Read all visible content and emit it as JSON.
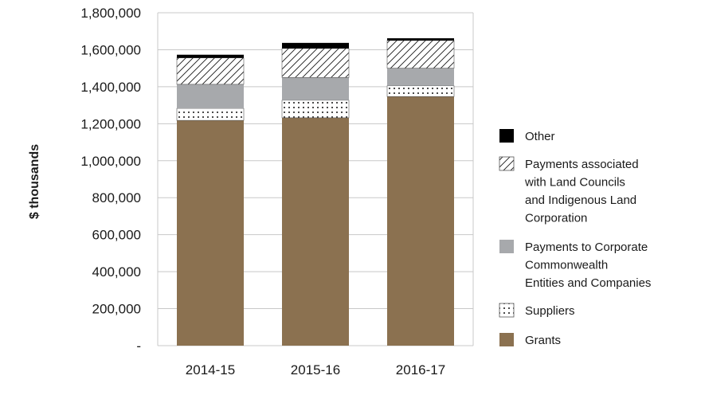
{
  "chart_data": {
    "type": "bar",
    "stacked": true,
    "title": "",
    "xlabel": "",
    "ylabel": "$ thousands",
    "ylim": [
      0,
      1800000
    ],
    "yticks": [
      {
        "value": 0,
        "label": "-"
      },
      {
        "value": 200000,
        "label": "200,000"
      },
      {
        "value": 400000,
        "label": "400,000"
      },
      {
        "value": 600000,
        "label": "600,000"
      },
      {
        "value": 800000,
        "label": "800,000"
      },
      {
        "value": 1000000,
        "label": "1,000,000"
      },
      {
        "value": 1200000,
        "label": "1,200,000"
      },
      {
        "value": 1400000,
        "label": "1,400,000"
      },
      {
        "value": 1600000,
        "label": "1,600,000"
      },
      {
        "value": 1800000,
        "label": "1,800,000"
      }
    ],
    "grid": true,
    "legend_position": "right",
    "categories": [
      "2014-15",
      "2015-16",
      "2016-17"
    ],
    "series": [
      {
        "name": "Grants",
        "key": "grants",
        "color": "#8b7150",
        "pattern": "solid",
        "values": [
          1218000,
          1232000,
          1347000
        ]
      },
      {
        "name": "Suppliers",
        "key": "suppliers",
        "color": "#ffffff",
        "pattern": "dots",
        "values": [
          65000,
          95000,
          58000
        ]
      },
      {
        "name": "Payments to Corporate Commonwealth Entities and Companies",
        "key": "corporate",
        "color": "#a7a9ac",
        "pattern": "solid",
        "values": [
          130000,
          123000,
          95000
        ]
      },
      {
        "name": "Payments associated with Land Councils and Indigenous Land Corporation",
        "key": "landcouncils",
        "color": "#ffffff",
        "pattern": "hatch",
        "values": [
          143000,
          157000,
          150000
        ]
      },
      {
        "name": "Other",
        "key": "other",
        "color": "#000000",
        "pattern": "solid",
        "values": [
          17000,
          30000,
          12000
        ]
      }
    ],
    "legend": [
      {
        "key": "other",
        "lines": [
          "Other"
        ]
      },
      {
        "key": "landcouncils",
        "lines": [
          "Payments associated",
          "with Land Councils",
          "and Indigenous Land",
          "Corporation"
        ]
      },
      {
        "key": "corporate",
        "lines": [
          "Payments to Corporate",
          "Commonwealth",
          "Entities and Companies"
        ]
      },
      {
        "key": "suppliers",
        "lines": [
          "Suppliers"
        ]
      },
      {
        "key": "grants",
        "lines": [
          "Grants"
        ]
      }
    ]
  }
}
